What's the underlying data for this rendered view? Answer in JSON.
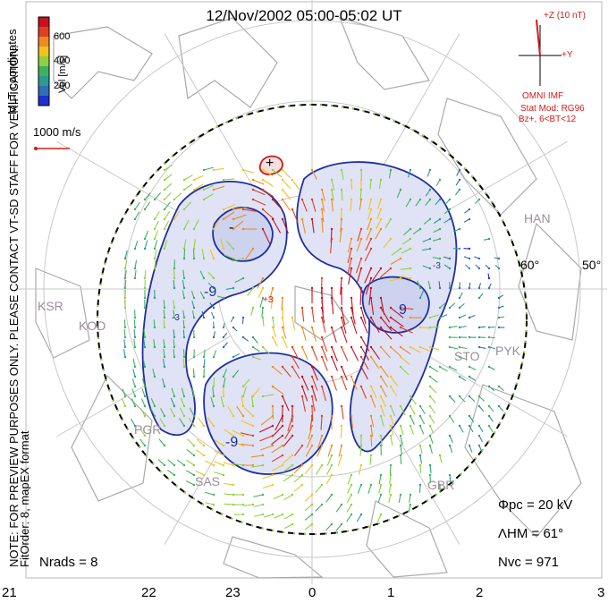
{
  "title": "12/Nov/2002 05:00-05:02 UT",
  "coords_label": "MLT coordinates",
  "note": "NOTE: FOR PREVIEW PURPOSES ONLY. PLEASE CONTACT VT-SD STAFF FOR VERIFICATION.",
  "fitorder": "FitOrder: 8, mapEX format",
  "colorbar": {
    "label": "Vel [m/s]",
    "ticks": [
      "600",
      "400",
      "200"
    ],
    "colors": [
      "#1f2fd1",
      "#2f6fb3",
      "#2f9a8f",
      "#3fb25f",
      "#8fd23f",
      "#f2c21f",
      "#f08a1f",
      "#e0401f",
      "#c8101f"
    ]
  },
  "scale_vector": "1000 m/s",
  "imf": {
    "z_label": "+Z (10 nT)",
    "y_label": "+Y",
    "source": "OMNI IMF",
    "model": "Stat Mod: RG96",
    "condition": "Bz+, 6<BT<12"
  },
  "lat_labels": [
    "60°",
    "50°"
  ],
  "sites": [
    "HAN",
    "KSR",
    "KOD",
    "STO",
    "PYK",
    "PGR",
    "SAS",
    "GBR"
  ],
  "contour_labels": [
    "+",
    "-",
    "-9",
    "9",
    "-9",
    "-3",
    "-3",
    "+3"
  ],
  "stats": {
    "phi_pc": "Φpc = 20 kV",
    "lambda_hm": "ΛHM = 61°",
    "n_vc": "Nvc = 971",
    "n_rads": "Nrads = 8"
  },
  "mlt_ticks": [
    "21",
    "22",
    "23",
    "0",
    "1",
    "2",
    "3"
  ]
}
